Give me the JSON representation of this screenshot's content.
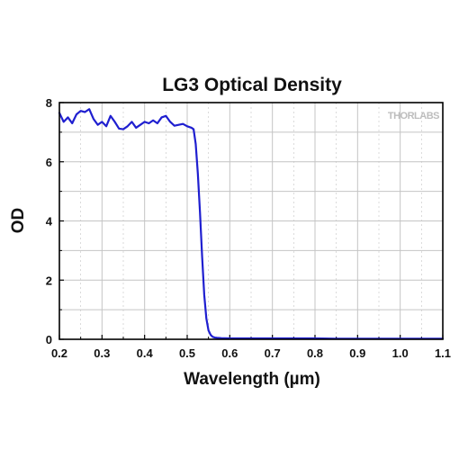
{
  "chart_data": {
    "type": "line",
    "title": "LG3 Optical Density",
    "xlabel": "Wavelength (µm)",
    "ylabel": "OD",
    "xlim": [
      0.2,
      1.1
    ],
    "ylim": [
      0,
      8
    ],
    "x_ticks": [
      0.2,
      0.3,
      0.4,
      0.5,
      0.6,
      0.7,
      0.8,
      0.9,
      1.0,
      1.1
    ],
    "x_tick_labels": [
      "0.2",
      "0.3",
      "0.4",
      "0.5",
      "0.6",
      "0.7",
      "0.8",
      "0.9",
      "1.0",
      "1.1"
    ],
    "y_ticks": [
      0,
      2,
      4,
      6,
      8
    ],
    "y_tick_labels": [
      "0",
      "2",
      "4",
      "6",
      "8"
    ],
    "grid": true,
    "legend": "none",
    "watermark": "THORLABS",
    "line_color": "#1f1fd0",
    "series": [
      {
        "x": [
          0.2,
          0.21,
          0.22,
          0.23,
          0.24,
          0.25,
          0.26,
          0.27,
          0.28,
          0.29,
          0.3,
          0.31,
          0.32,
          0.33,
          0.34,
          0.35,
          0.36,
          0.37,
          0.38,
          0.39,
          0.4,
          0.41,
          0.42,
          0.43,
          0.44,
          0.45,
          0.46,
          0.47,
          0.48,
          0.49,
          0.5,
          0.51,
          0.515,
          0.52,
          0.525,
          0.53,
          0.535,
          0.54,
          0.545,
          0.55,
          0.555,
          0.56,
          0.565,
          0.57,
          0.58,
          0.6,
          0.65,
          0.7,
          0.75,
          0.8,
          0.85,
          0.9,
          0.95,
          1.0,
          1.05,
          1.1
        ],
        "y": [
          7.65,
          7.35,
          7.5,
          7.3,
          7.6,
          7.72,
          7.68,
          7.78,
          7.45,
          7.25,
          7.35,
          7.2,
          7.55,
          7.35,
          7.12,
          7.1,
          7.2,
          7.35,
          7.15,
          7.25,
          7.35,
          7.3,
          7.4,
          7.3,
          7.5,
          7.55,
          7.35,
          7.22,
          7.25,
          7.28,
          7.2,
          7.15,
          7.1,
          6.6,
          5.6,
          4.3,
          2.8,
          1.5,
          0.7,
          0.3,
          0.15,
          0.08,
          0.06,
          0.05,
          0.04,
          0.03,
          0.03,
          0.03,
          0.03,
          0.03,
          0.02,
          0.02,
          0.02,
          0.02,
          0.02,
          0.02
        ]
      }
    ]
  }
}
